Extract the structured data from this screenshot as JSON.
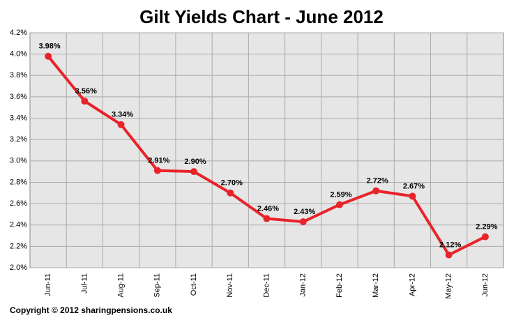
{
  "chart_data": {
    "type": "line",
    "title": "Gilt Yields Chart - June 2012",
    "categories": [
      "Jun-11",
      "Jul-11",
      "Aug-11",
      "Sep-11",
      "Oct-11",
      "Nov-11",
      "Dec-11",
      "Jan-12",
      "Feb-12",
      "Mar-12",
      "Apr-12",
      "May-12",
      "Jun-12"
    ],
    "values": [
      3.98,
      3.56,
      3.34,
      2.91,
      2.9,
      2.7,
      2.46,
      2.43,
      2.59,
      2.72,
      2.67,
      2.12,
      2.29
    ],
    "value_labels": [
      "3.98%",
      "3.56%",
      "3.34%",
      "2.91%",
      "2.90%",
      "2.70%",
      "2.46%",
      "2.43%",
      "2.59%",
      "2.72%",
      "2.67%",
      "2.12%",
      "2.29%"
    ],
    "color": "#e8232a",
    "ylim": [
      2.0,
      4.2
    ],
    "yticks": [
      {
        "value": 2.0,
        "label": "2.0%"
      },
      {
        "value": 2.2,
        "label": "2.2%"
      },
      {
        "value": 2.4,
        "label": "2.4%"
      },
      {
        "value": 2.6,
        "label": "2.6%"
      },
      {
        "value": 2.8,
        "label": "2.8%"
      },
      {
        "value": 3.0,
        "label": "3.0%"
      },
      {
        "value": 3.2,
        "label": "3.2%"
      },
      {
        "value": 3.4,
        "label": "3.4%"
      },
      {
        "value": 3.6,
        "label": "3.6%"
      },
      {
        "value": 3.8,
        "label": "3.8%"
      },
      {
        "value": 4.0,
        "label": "4.0%"
      },
      {
        "value": 4.2,
        "label": "4.2%"
      }
    ],
    "grid": true,
    "footnote": "Copyright © 2012 sharingpensions.co.uk"
  }
}
